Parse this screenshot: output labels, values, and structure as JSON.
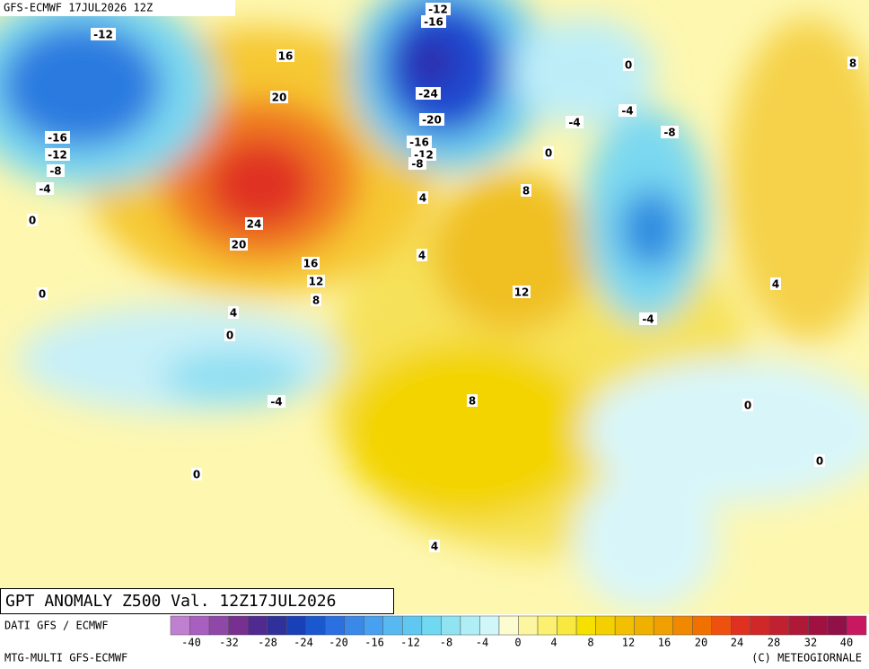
{
  "header": {
    "title": "GFS-ECMWF  17JUL2026 12Z"
  },
  "map": {
    "title": "GPT ANOMALY Z500 Val. 12Z17JUL2026",
    "contour_labels": [
      "-12",
      "16",
      "-12",
      "-16",
      "0",
      "8",
      "20",
      "-24",
      "-4",
      "-20",
      "-4",
      "-8",
      "-16",
      "-16",
      "-12",
      "-12",
      "0",
      "-8",
      "-8",
      "-4",
      "8",
      "4",
      "0",
      "24",
      "20",
      "4",
      "16",
      "12",
      "4",
      "8",
      "12",
      "0",
      "4",
      "-4",
      "0",
      "-4",
      "8",
      "0",
      "0",
      "0",
      "4"
    ]
  },
  "legend": {
    "source": "DATI GFS / ECMWF",
    "ticks": [
      "-40",
      "-32",
      "-28",
      "-24",
      "-20",
      "-16",
      "-12",
      "-8",
      "-4",
      "0",
      "4",
      "8",
      "12",
      "16",
      "20",
      "24",
      "28",
      "32",
      "40"
    ]
  },
  "footer": {
    "model": "MTG-MULTI GFS-ECMWF",
    "copyright": "(C) METEOGIORNALE"
  }
}
